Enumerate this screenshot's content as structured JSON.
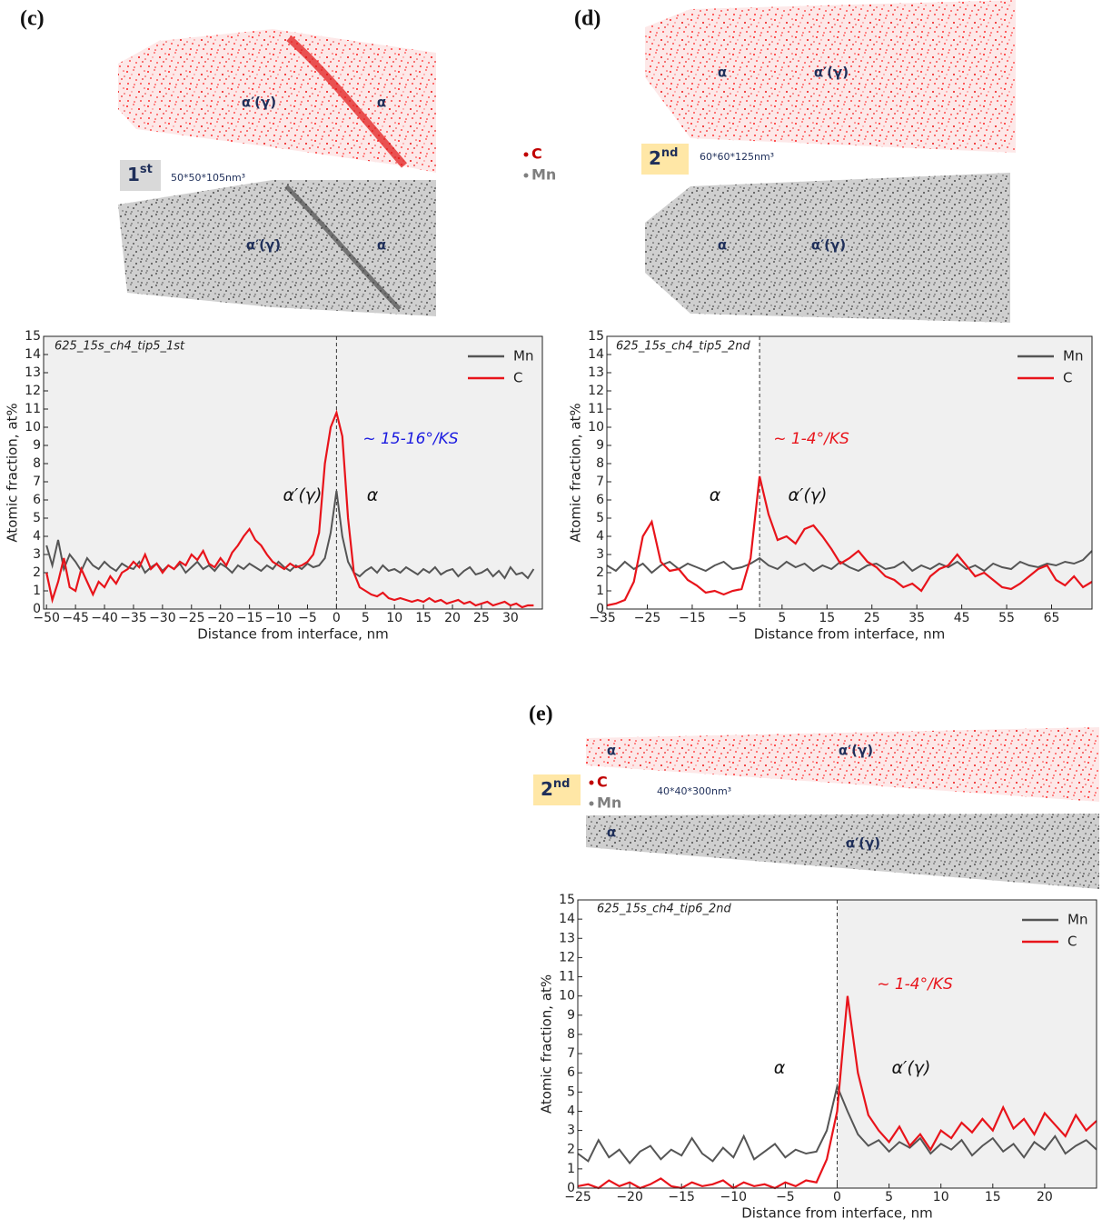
{
  "chart_data": [
    {
      "type": "line",
      "xlabel": "Distance from interface, nm",
      "ylabel": "Atomic fraction, at%",
      "xlim": [
        -50.5,
        35.5
      ],
      "ylim": [
        0,
        15
      ],
      "xticks": [
        {
          "value": -50,
          "label": "−50"
        },
        {
          "value": -45,
          "label": "−45"
        },
        {
          "value": -40,
          "label": "−40"
        },
        {
          "value": -35,
          "label": "−35"
        },
        {
          "value": -30,
          "label": "−30"
        },
        {
          "value": -25,
          "label": "−25"
        },
        {
          "value": -20,
          "label": "−20"
        },
        {
          "value": -15,
          "label": "−15"
        },
        {
          "value": -10,
          "label": "−10"
        },
        {
          "value": -5,
          "label": "−5"
        },
        0,
        5,
        10,
        15,
        20,
        25,
        30
      ],
      "yticks": [
        0,
        1,
        2,
        3,
        4,
        5,
        6,
        7,
        8,
        9,
        10,
        11,
        12,
        13,
        14,
        15
      ],
      "x": [
        -50,
        -49,
        -48,
        -47,
        -46,
        -45,
        -44,
        -43,
        -42,
        -41,
        -40,
        -39,
        -38,
        -37,
        -36,
        -35,
        -34,
        -33,
        -32,
        -31,
        -30,
        -29,
        -28,
        -27,
        -26,
        -25,
        -24,
        -23,
        -22,
        -21,
        -20,
        -19,
        -18,
        -17,
        -16,
        -15,
        -14,
        -13,
        -12,
        -11,
        -10,
        -9,
        -8,
        -7,
        -6,
        -5,
        -4,
        -3,
        -2,
        -1,
        0,
        1,
        2,
        3,
        4,
        5,
        6,
        7,
        8,
        9,
        10,
        11,
        12,
        13,
        14,
        15,
        16,
        17,
        18,
        19,
        20,
        21,
        22,
        23,
        24,
        25,
        26,
        27,
        28,
        29,
        30,
        31,
        32,
        33,
        34
      ],
      "series": [
        {
          "name": "Mn",
          "color": "#555555",
          "values": [
            3.5,
            2.4,
            3.8,
            2.2,
            3.0,
            2.6,
            2.1,
            2.8,
            2.4,
            2.2,
            2.6,
            2.3,
            2.1,
            2.5,
            2.3,
            2.2,
            2.6,
            2.0,
            2.3,
            2.5,
            2.1,
            2.4,
            2.2,
            2.5,
            2.0,
            2.3,
            2.6,
            2.2,
            2.4,
            2.1,
            2.5,
            2.3,
            2.0,
            2.4,
            2.2,
            2.5,
            2.3,
            2.1,
            2.4,
            2.2,
            2.6,
            2.3,
            2.1,
            2.4,
            2.2,
            2.5,
            2.3,
            2.4,
            2.8,
            4.2,
            6.5,
            4.0,
            2.6,
            2.0,
            1.8,
            2.1,
            2.3,
            2.0,
            2.4,
            2.1,
            2.2,
            2.0,
            2.3,
            2.1,
            1.9,
            2.2,
            2.0,
            2.3,
            1.9,
            2.1,
            2.2,
            1.8,
            2.1,
            2.3,
            1.9,
            2.0,
            2.2,
            1.8,
            2.1,
            1.7,
            2.3,
            1.9,
            2.0,
            1.7,
            2.2
          ]
        },
        {
          "name": "C",
          "color": "#e8141b",
          "values": [
            2.0,
            0.5,
            1.5,
            2.8,
            1.2,
            1.0,
            2.2,
            1.5,
            0.8,
            1.5,
            1.2,
            1.8,
            1.4,
            2.0,
            2.2,
            2.6,
            2.3,
            3.0,
            2.2,
            2.5,
            2.0,
            2.4,
            2.2,
            2.6,
            2.4,
            3.0,
            2.7,
            3.2,
            2.5,
            2.3,
            2.8,
            2.4,
            3.1,
            3.5,
            4.0,
            4.4,
            3.8,
            3.5,
            3.0,
            2.6,
            2.4,
            2.2,
            2.5,
            2.3,
            2.4,
            2.6,
            3.0,
            4.2,
            8.0,
            10.0,
            10.8,
            9.5,
            5.0,
            2.0,
            1.2,
            1.0,
            0.8,
            0.7,
            0.9,
            0.6,
            0.5,
            0.6,
            0.5,
            0.4,
            0.5,
            0.4,
            0.6,
            0.4,
            0.5,
            0.3,
            0.4,
            0.5,
            0.3,
            0.4,
            0.2,
            0.3,
            0.4,
            0.2,
            0.3,
            0.4,
            0.2,
            0.3,
            0.1,
            0.2,
            0.2
          ]
        }
      ],
      "annotations": [
        {
          "text": "625_15s_ch4_tip5_1st",
          "color": "#222222"
        },
        {
          "text": "α′(γ)",
          "color": "#111111"
        },
        {
          "text": "α",
          "color": "#111111"
        },
        {
          "text": "~ 15-16°/KS",
          "color": "#1a1ae0"
        }
      ],
      "legend": "upper right"
    },
    {
      "type": "line",
      "xlabel": "Distance from interface, nm",
      "ylabel": "Atomic fraction, at%",
      "xlim": [
        -34,
        74
      ],
      "ylim": [
        0,
        15
      ],
      "xticks": [
        {
          "value": -35,
          "label": "−35"
        },
        {
          "value": -25,
          "label": "−25"
        },
        {
          "value": -15,
          "label": "−15"
        },
        {
          "value": -5,
          "label": "−5"
        },
        5,
        15,
        25,
        35,
        45,
        55,
        65
      ],
      "yticks": [
        0,
        1,
        2,
        3,
        4,
        5,
        6,
        7,
        8,
        9,
        10,
        11,
        12,
        13,
        14,
        15
      ],
      "x": [
        -34,
        -32,
        -30,
        -28,
        -26,
        -24,
        -22,
        -20,
        -18,
        -16,
        -14,
        -12,
        -10,
        -8,
        -6,
        -4,
        -2,
        0,
        2,
        4,
        6,
        8,
        10,
        12,
        14,
        16,
        18,
        20,
        22,
        24,
        26,
        28,
        30,
        32,
        34,
        36,
        38,
        40,
        42,
        44,
        46,
        48,
        50,
        52,
        54,
        56,
        58,
        60,
        62,
        64,
        66,
        68,
        70,
        72,
        74
      ],
      "series": [
        {
          "name": "Mn",
          "color": "#555555",
          "values": [
            2.4,
            2.1,
            2.6,
            2.2,
            2.5,
            2.0,
            2.4,
            2.6,
            2.2,
            2.5,
            2.3,
            2.1,
            2.4,
            2.6,
            2.2,
            2.3,
            2.5,
            2.8,
            2.4,
            2.2,
            2.6,
            2.3,
            2.5,
            2.1,
            2.4,
            2.2,
            2.6,
            2.3,
            2.1,
            2.4,
            2.5,
            2.2,
            2.3,
            2.6,
            2.1,
            2.4,
            2.2,
            2.5,
            2.3,
            2.6,
            2.2,
            2.4,
            2.1,
            2.5,
            2.3,
            2.2,
            2.6,
            2.4,
            2.3,
            2.5,
            2.4,
            2.6,
            2.5,
            2.7,
            3.2
          ]
        },
        {
          "name": "C",
          "color": "#e8141b",
          "values": [
            0.2,
            0.3,
            0.5,
            1.5,
            4.0,
            4.8,
            2.6,
            2.1,
            2.2,
            1.6,
            1.3,
            0.9,
            1.0,
            0.8,
            1.0,
            1.1,
            2.8,
            7.3,
            5.2,
            3.8,
            4.0,
            3.6,
            4.4,
            4.6,
            4.0,
            3.3,
            2.5,
            2.8,
            3.2,
            2.6,
            2.3,
            1.8,
            1.6,
            1.2,
            1.4,
            1.0,
            1.8,
            2.2,
            2.4,
            3.0,
            2.4,
            1.8,
            2.0,
            1.6,
            1.2,
            1.1,
            1.4,
            1.8,
            2.2,
            2.4,
            1.6,
            1.3,
            1.8,
            1.2,
            1.5
          ]
        }
      ],
      "annotations": [
        {
          "text": "625_15s_ch4_tip5_2nd",
          "color": "#222222"
        },
        {
          "text": "α",
          "color": "#111111"
        },
        {
          "text": "α′(γ)",
          "color": "#111111"
        },
        {
          "text": "~ 1-4°/KS",
          "color": "#e8141b"
        }
      ],
      "legend": "upper right"
    },
    {
      "type": "line",
      "xlabel": "Distance from interface, nm",
      "ylabel": "Atomic fraction, at%",
      "xlim": [
        -25,
        25
      ],
      "ylim": [
        0,
        15
      ],
      "xticks": [
        {
          "value": -25,
          "label": "−25"
        },
        {
          "value": -20,
          "label": "−20"
        },
        {
          "value": -15,
          "label": "−15"
        },
        {
          "value": -10,
          "label": "−10"
        },
        {
          "value": -5,
          "label": "−5"
        },
        0,
        5,
        10,
        15,
        20
      ],
      "yticks": [
        0,
        1,
        2,
        3,
        4,
        5,
        6,
        7,
        8,
        9,
        10,
        11,
        12,
        13,
        14,
        15
      ],
      "x": [
        -25,
        -24,
        -23,
        -22,
        -21,
        -20,
        -19,
        -18,
        -17,
        -16,
        -15,
        -14,
        -13,
        -12,
        -11,
        -10,
        -9,
        -8,
        -7,
        -6,
        -5,
        -4,
        -3,
        -2,
        -1,
        0,
        1,
        2,
        3,
        4,
        5,
        6,
        7,
        8,
        9,
        10,
        11,
        12,
        13,
        14,
        15,
        16,
        17,
        18,
        19,
        20,
        21,
        22,
        23,
        24,
        25
      ],
      "series": [
        {
          "name": "Mn",
          "color": "#555555",
          "values": [
            1.8,
            1.4,
            2.5,
            1.6,
            2.0,
            1.3,
            1.9,
            2.2,
            1.5,
            2.0,
            1.7,
            2.6,
            1.8,
            1.4,
            2.1,
            1.6,
            2.7,
            1.5,
            1.9,
            2.3,
            1.6,
            2.0,
            1.8,
            1.9,
            3.0,
            5.3,
            4.0,
            2.8,
            2.2,
            2.5,
            1.9,
            2.4,
            2.1,
            2.6,
            1.8,
            2.3,
            2.0,
            2.5,
            1.7,
            2.2,
            2.6,
            1.9,
            2.3,
            1.6,
            2.4,
            2.0,
            2.7,
            1.8,
            2.2,
            2.5,
            2.0
          ]
        },
        {
          "name": "C",
          "color": "#e8141b",
          "values": [
            0.1,
            0.2,
            0.0,
            0.4,
            0.1,
            0.3,
            0.0,
            0.2,
            0.5,
            0.1,
            0.0,
            0.3,
            0.1,
            0.2,
            0.4,
            0.0,
            0.3,
            0.1,
            0.2,
            0.0,
            0.3,
            0.1,
            0.4,
            0.3,
            1.5,
            4.0,
            10.0,
            6.0,
            3.8,
            3.0,
            2.4,
            3.2,
            2.2,
            2.8,
            2.0,
            3.0,
            2.6,
            3.4,
            2.9,
            3.6,
            3.0,
            4.2,
            3.1,
            3.6,
            2.8,
            3.9,
            3.3,
            2.7,
            3.8,
            3.0,
            3.5
          ]
        }
      ],
      "annotations": [
        {
          "text": "625_15s_ch4_tip6_2nd",
          "color": "#222222"
        },
        {
          "text": "α",
          "color": "#111111"
        },
        {
          "text": "α′(γ)",
          "color": "#111111"
        },
        {
          "text": "~ 1-4°/KS",
          "color": "#e8141b"
        }
      ],
      "legend": "upper right"
    }
  ],
  "panels": [
    {
      "label": "(c)",
      "c_labels": [
        "α′(γ)",
        "α"
      ],
      "mn_labels": [
        "α′(γ)",
        "α"
      ],
      "run": "1",
      "run_sup": "st",
      "size": "50*50*105nm³"
    },
    {
      "label": "(d)",
      "c_labels": [
        "α",
        "α′(γ)"
      ],
      "mn_labels": [
        "α",
        "α′(γ)"
      ],
      "run": "2",
      "run_sup": "nd",
      "size": "60*60*125nm³"
    },
    {
      "label": "(e)",
      "c_labels": [
        "α",
        "α′(γ)"
      ],
      "mn_labels": [
        "α",
        "α′(γ)"
      ],
      "run": "2",
      "run_sup": "nd",
      "size": "40*40*300nm³"
    }
  ],
  "tip_legend": [
    {
      "text": "C",
      "color": "#c00000"
    },
    {
      "text": "Mn",
      "color": "#7f7f7f"
    }
  ]
}
